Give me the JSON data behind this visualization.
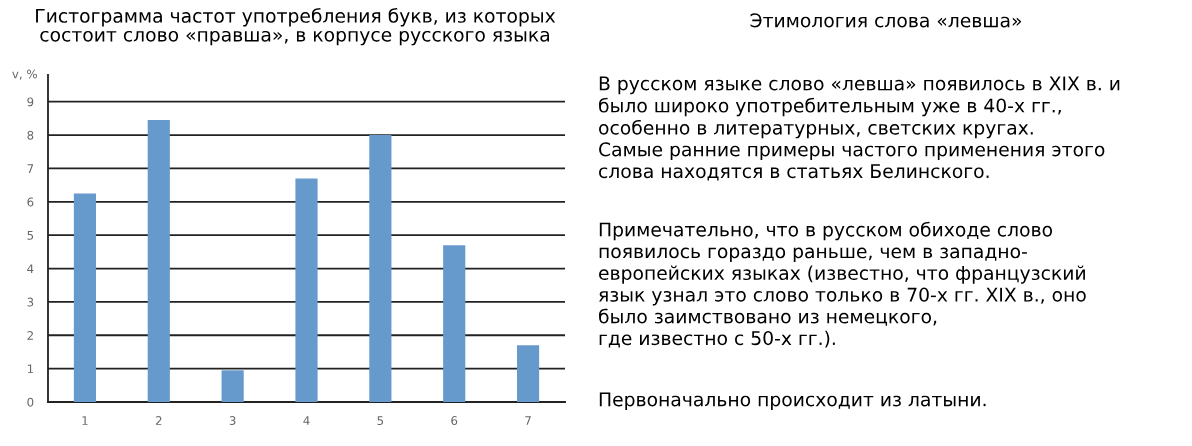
{
  "chart_data": [
    {
      "type": "bar",
      "title": "Гистограмма частот употребления букв, из которых\nсостоит слово «правша», в корпусе русского языка",
      "ylabel": "v, %",
      "categories": [
        "1",
        "2",
        "3",
        "4",
        "5",
        "6",
        "7"
      ],
      "values": [
        6.25,
        8.45,
        0.95,
        6.7,
        8.0,
        4.7,
        1.7
      ],
      "color": "#6699cc",
      "ylim": [
        0,
        9.8
      ],
      "yticks": [
        0,
        1,
        2,
        3,
        4,
        5,
        6,
        7,
        8,
        9
      ],
      "grid": "y"
    },
    {
      "type": "other",
      "title": "Этимология слова «левша»",
      "annotations": [
        "В русском языке слово «левша» появилось в XIX в. и\nбыло широко употребительным уже в 40-х гг.,\nособенно в литературных, светских кругах.\nСамые ранние примеры частого применения этого\nслова находятся в статьях Белинского.",
        "Примечательно, что в русском обиходе слово\nпоявилось гораздо раньше, чем в западно-\nевропейских языках (известно, что французский\nязык узнал это слово только в 70-х гг. XIX в., оно\nбыло заимствовано из немецкого,\nгде известно с 50-х гг.).",
        "Первоначально происходит из латыни."
      ]
    }
  ]
}
